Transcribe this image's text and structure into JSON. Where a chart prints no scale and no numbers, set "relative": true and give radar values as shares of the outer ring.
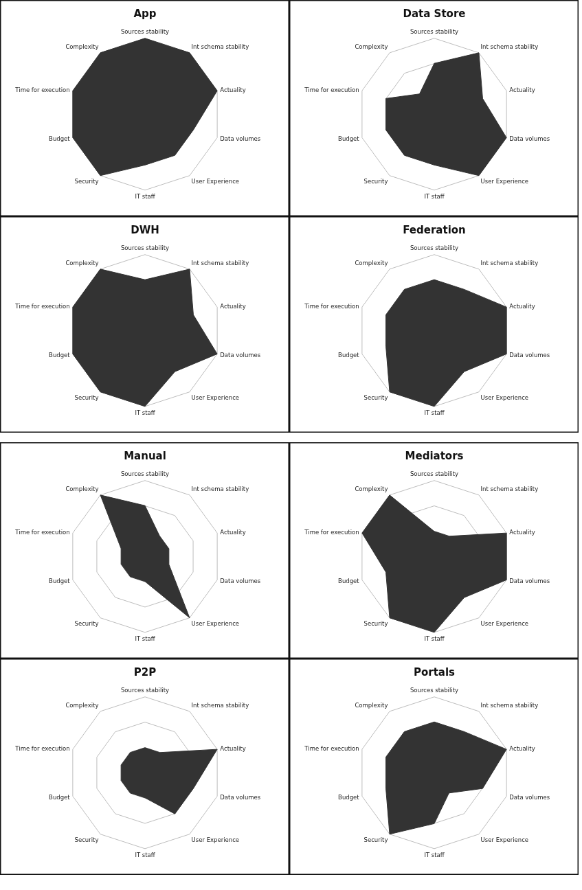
{
  "chart_data": [
    {
      "type": "radar",
      "title": "App",
      "relative": true,
      "grid": true,
      "categories": [
        "Sources stability",
        "Int schema stability",
        "Actuality",
        "Data volumes",
        "User Experience",
        "IT staff",
        "Security",
        "Budget",
        "Time for execution",
        "Complexity"
      ],
      "series": [
        {
          "color": "#333333",
          "values": [
            1,
            1,
            1,
            0.67,
            0.67,
            0.67,
            1,
            1,
            1,
            1
          ]
        }
      ]
    },
    {
      "type": "radar",
      "title": "Data Store",
      "relative": true,
      "grid": true,
      "categories": [
        "Sources stability",
        "Int schema stability",
        "Actuality",
        "Data volumes",
        "User Experience",
        "IT staff",
        "Security",
        "Budget",
        "Time for execution",
        "Complexity"
      ],
      "series": [
        {
          "color": "#333333",
          "values": [
            0.67,
            1,
            0.67,
            1,
            1,
            0.67,
            0.67,
            0.67,
            0.67,
            0.33
          ]
        }
      ]
    },
    {
      "type": "radar",
      "title": "DWH",
      "relative": true,
      "grid": true,
      "categories": [
        "Sources stability",
        "Int schema stability",
        "Actuality",
        "Data volumes",
        "User Experience",
        "IT staff",
        "Security",
        "Budget",
        "Time for execution",
        "Complexity"
      ],
      "series": [
        {
          "color": "#333333",
          "values": [
            0.67,
            1,
            0.67,
            1,
            0.67,
            1,
            1,
            1,
            1,
            1
          ]
        }
      ]
    },
    {
      "type": "radar",
      "title": "Federation",
      "relative": true,
      "grid": true,
      "categories": [
        "Sources stability",
        "Int schema stability",
        "Actuality",
        "Data volumes",
        "User Experience",
        "IT staff",
        "Security",
        "Budget",
        "Time for execution",
        "Complexity"
      ],
      "series": [
        {
          "color": "#333333",
          "values": [
            0.67,
            0.67,
            1,
            1,
            0.67,
            1,
            1,
            0.67,
            0.67,
            0.67
          ]
        }
      ]
    },
    {
      "type": "radar",
      "title": "Manual",
      "relative": true,
      "grid": true,
      "categories": [
        "Sources stability",
        "Int schema stability",
        "Actuality",
        "Data volumes",
        "User Experience",
        "IT staff",
        "Security",
        "Budget",
        "Time for execution",
        "Complexity"
      ],
      "series": [
        {
          "color": "#333333",
          "values": [
            0.67,
            0.33,
            0.33,
            0.33,
            1,
            0.33,
            0.33,
            0.33,
            0.33,
            1
          ]
        }
      ]
    },
    {
      "type": "radar",
      "title": "Mediators",
      "relative": true,
      "grid": true,
      "categories": [
        "Sources stability",
        "Int schema stability",
        "Actuality",
        "Data volumes",
        "User Experience",
        "IT staff",
        "Security",
        "Budget",
        "Time for execution",
        "Complexity"
      ],
      "series": [
        {
          "color": "#333333",
          "values": [
            0.33,
            0.33,
            1,
            1,
            0.67,
            1,
            1,
            0.67,
            1,
            1
          ]
        }
      ]
    },
    {
      "type": "radar",
      "title": "P2P",
      "relative": true,
      "grid": true,
      "categories": [
        "Sources stability",
        "Int schema stability",
        "Actuality",
        "Data volumes",
        "User Experience",
        "IT staff",
        "Security",
        "Budget",
        "Time for execution",
        "Complexity"
      ],
      "series": [
        {
          "color": "#333333",
          "values": [
            0.33,
            0.33,
            1,
            0.67,
            0.67,
            0.33,
            0.33,
            0.33,
            0.33,
            0.33
          ]
        }
      ]
    },
    {
      "type": "radar",
      "title": "Portals",
      "relative": true,
      "grid": true,
      "categories": [
        "Sources stability",
        "Int schema stability",
        "Actuality",
        "Data volumes",
        "User Experience",
        "IT staff",
        "Security",
        "Budget",
        "Time for execution",
        "Complexity"
      ],
      "series": [
        {
          "color": "#333333",
          "values": [
            0.67,
            0.67,
            1,
            0.67,
            0.33,
            0.67,
            1,
            0.67,
            0.67,
            0.67
          ]
        }
      ]
    }
  ]
}
